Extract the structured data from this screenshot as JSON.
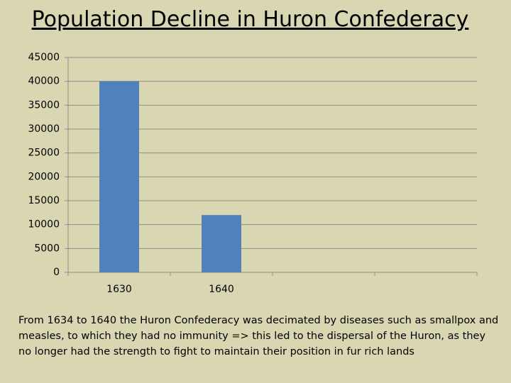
{
  "chart_data": {
    "type": "bar",
    "title": "Population Decline in Huron Confederacy",
    "categories": [
      "1630",
      "1640",
      null,
      null
    ],
    "values": [
      40000,
      12000,
      null,
      null
    ],
    "color": "#4f81bd",
    "ylim": [
      0,
      45000
    ],
    "yticks": [
      0,
      5000,
      10000,
      15000,
      20000,
      25000,
      30000,
      35000,
      40000,
      45000
    ],
    "grid": true,
    "annotation": "From 1634 to 1640 the Huron Confederacy was decimated by diseases such as smallpox and measles, to which they had no immunity => this led to the dispersal of the Huron, as they no longer had the strength to fight to maintain their position in fur rich lands"
  }
}
